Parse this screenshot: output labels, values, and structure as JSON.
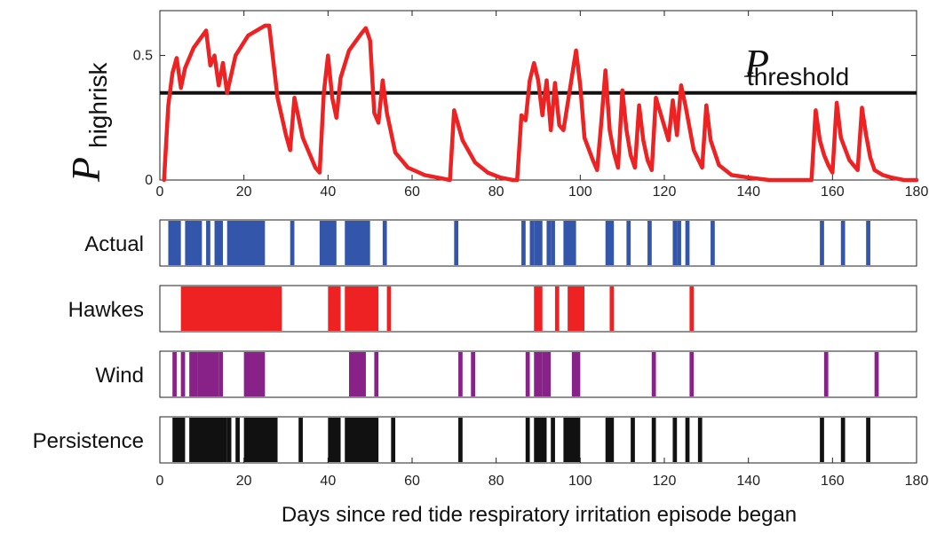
{
  "chart_data": [
    {
      "type": "line",
      "ylabel": {
        "main": "P",
        "sub": "highrisk"
      },
      "threshold_label": {
        "main": "P",
        "sub": "threshold"
      },
      "threshold": 0.35,
      "xlim": [
        0,
        180
      ],
      "ylim": [
        0,
        0.68
      ],
      "xticks": [
        0,
        20,
        40,
        60,
        80,
        100,
        120,
        140,
        160,
        180
      ],
      "yticks": [
        0,
        0.5
      ],
      "ytick_labels": [
        "0",
        "0.5"
      ],
      "series": [
        {
          "color": "#ee2222",
          "x": [
            1,
            2,
            3,
            4,
            5,
            6,
            8,
            11,
            12,
            13,
            14,
            15,
            16,
            18,
            21,
            25,
            26,
            28,
            30,
            31,
            32,
            34,
            37,
            38,
            39,
            40,
            41,
            42,
            43,
            45,
            48,
            49,
            50,
            51,
            52,
            53,
            54,
            56,
            59,
            63,
            66,
            69,
            70,
            72,
            75,
            78,
            81,
            84,
            85,
            86,
            87,
            88,
            89,
            90,
            91,
            92,
            93,
            94,
            95,
            96,
            99,
            100,
            101,
            103,
            104,
            105,
            106,
            107,
            108,
            109,
            110,
            111,
            112,
            113,
            114,
            115,
            116,
            117,
            118,
            121,
            122,
            123,
            124,
            125,
            127,
            129,
            130,
            131,
            133,
            136,
            140,
            145,
            150,
            155,
            156,
            157,
            158,
            159,
            160,
            161,
            162,
            164,
            166,
            167,
            168,
            169,
            170,
            172,
            174,
            177,
            180
          ],
          "y": [
            0.0,
            0.3,
            0.43,
            0.49,
            0.37,
            0.45,
            0.53,
            0.6,
            0.46,
            0.5,
            0.38,
            0.47,
            0.35,
            0.5,
            0.58,
            0.62,
            0.62,
            0.33,
            0.18,
            0.12,
            0.33,
            0.17,
            0.05,
            0.03,
            0.35,
            0.5,
            0.33,
            0.25,
            0.41,
            0.52,
            0.59,
            0.61,
            0.56,
            0.27,
            0.23,
            0.4,
            0.27,
            0.11,
            0.05,
            0.02,
            0.01,
            0.0,
            0.28,
            0.16,
            0.07,
            0.03,
            0.01,
            0.0,
            0.0,
            0.26,
            0.24,
            0.4,
            0.47,
            0.4,
            0.26,
            0.4,
            0.2,
            0.39,
            0.22,
            0.2,
            0.52,
            0.38,
            0.17,
            0.08,
            0.04,
            0.23,
            0.44,
            0.2,
            0.11,
            0.05,
            0.36,
            0.2,
            0.1,
            0.05,
            0.3,
            0.16,
            0.08,
            0.04,
            0.33,
            0.16,
            0.32,
            0.18,
            0.38,
            0.3,
            0.12,
            0.05,
            0.3,
            0.16,
            0.06,
            0.02,
            0.01,
            0.0,
            0.0,
            0.0,
            0.28,
            0.16,
            0.1,
            0.06,
            0.03,
            0.31,
            0.17,
            0.08,
            0.04,
            0.29,
            0.18,
            0.09,
            0.04,
            0.02,
            0.01,
            0.0,
            0.0
          ]
        }
      ]
    },
    {
      "type": "bar",
      "rows": [
        {
          "name": "Actual",
          "color": "#3355aa",
          "intervals": [
            [
              2,
              5
            ],
            [
              6,
              10
            ],
            [
              11,
              12
            ],
            [
              13,
              15
            ],
            [
              16,
              25
            ],
            [
              31,
              32
            ],
            [
              38,
              42
            ],
            [
              44,
              50
            ],
            [
              53,
              54
            ],
            [
              70,
              71
            ],
            [
              86,
              87
            ],
            [
              88,
              89
            ],
            [
              89,
              91
            ],
            [
              92,
              93
            ],
            [
              93,
              94
            ],
            [
              96,
              99
            ],
            [
              106,
              108
            ],
            [
              111,
              112
            ],
            [
              116,
              117
            ],
            [
              122,
              123
            ],
            [
              123,
              124
            ],
            [
              125,
              126
            ],
            [
              131,
              132
            ],
            [
              157,
              158
            ],
            [
              162,
              163
            ],
            [
              168,
              169
            ]
          ]
        },
        {
          "name": "Hawkes",
          "color": "#ee2222",
          "intervals": [
            [
              5,
              29
            ],
            [
              40,
              43
            ],
            [
              44,
              52
            ],
            [
              54,
              55
            ],
            [
              89,
              91
            ],
            [
              94,
              95
            ],
            [
              97,
              101
            ],
            [
              107,
              108
            ],
            [
              126,
              127
            ]
          ]
        },
        {
          "name": "Wind",
          "color": "#882288",
          "intervals": [
            [
              3,
              4
            ],
            [
              5,
              6
            ],
            [
              7,
              9
            ],
            [
              9,
              14
            ],
            [
              14,
              15
            ],
            [
              20,
              25
            ],
            [
              45,
              49
            ],
            [
              51,
              52
            ],
            [
              71,
              72
            ],
            [
              74,
              75
            ],
            [
              87,
              88
            ],
            [
              89,
              91
            ],
            [
              91,
              93
            ],
            [
              98,
              100
            ],
            [
              117,
              118
            ],
            [
              126,
              127
            ],
            [
              158,
              159
            ],
            [
              170,
              171
            ]
          ]
        },
        {
          "name": "Persistence",
          "color": "#111111",
          "intervals": [
            [
              3,
              6
            ],
            [
              7,
              15
            ],
            [
              15,
              16
            ],
            [
              16,
              17
            ],
            [
              18,
              19
            ],
            [
              20,
              28
            ],
            [
              33,
              34
            ],
            [
              40,
              43
            ],
            [
              44,
              52
            ],
            [
              55,
              56
            ],
            [
              71,
              72
            ],
            [
              87,
              88
            ],
            [
              89,
              92
            ],
            [
              93,
              94
            ],
            [
              96,
              100
            ],
            [
              106,
              108
            ],
            [
              112,
              113
            ],
            [
              117,
              118
            ],
            [
              122,
              123
            ],
            [
              125,
              126
            ],
            [
              128,
              129
            ],
            [
              157,
              158
            ],
            [
              162,
              163
            ],
            [
              168,
              169
            ]
          ]
        }
      ],
      "xlim": [
        0,
        180
      ],
      "xticks": [
        0,
        20,
        40,
        60,
        80,
        100,
        120,
        140,
        160,
        180
      ],
      "xlabel": "Days since red tide respiratory irritation episode began"
    }
  ]
}
